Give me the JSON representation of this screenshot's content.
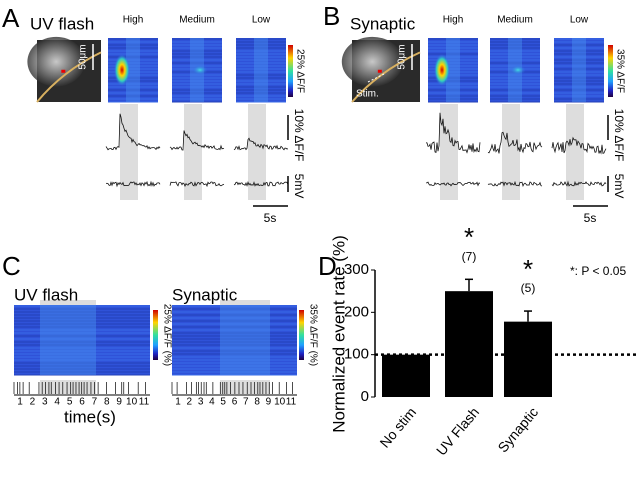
{
  "panels": {
    "a": {
      "label": "A",
      "title": "UV flash",
      "conditions": [
        "High",
        "Medium",
        "Low"
      ],
      "image_scale": "50μm",
      "colorbar": "25% ΔF/F",
      "trace_scale_df": "10% ΔF/F",
      "trace_scale_mv": "5mV",
      "time_scale": "5s"
    },
    "b": {
      "label": "B",
      "title": "Synaptic",
      "conditions": [
        "High",
        "Medium",
        "Low"
      ],
      "image_scale": "50μm",
      "stim": "Stim.",
      "colorbar": "35% ΔF/F",
      "trace_scale_df": "10% ΔF/F",
      "trace_scale_mv": "5mV",
      "time_scale": "5s"
    },
    "c": {
      "label": "C",
      "heatmaps": [
        {
          "title": "UV flash",
          "colorbar": "25% ΔF/F (%)"
        },
        {
          "title": "Synaptic",
          "colorbar": "35% ΔF/F (%)"
        }
      ],
      "time_ticks": [
        1,
        2,
        3,
        4,
        5,
        6,
        7,
        8,
        9,
        10,
        11
      ],
      "x_label": "time(s)"
    },
    "d": {
      "label": "D"
    }
  },
  "chart_data": {
    "type": "bar",
    "y_label": "Normalized event rate (%)",
    "categories": [
      "No stim",
      "UV Flash",
      "Synaptic"
    ],
    "values": [
      100,
      250,
      178
    ],
    "errors": [
      null,
      28,
      25
    ],
    "color": "#000000",
    "ylim": [
      0,
      300
    ],
    "yticks": [
      0,
      100,
      200,
      300
    ],
    "reference_line": 100,
    "n_labels": [
      null,
      "(7)",
      "(5)"
    ],
    "significance": [
      null,
      "*",
      "*"
    ],
    "significance_note": "*: P < 0.05"
  }
}
